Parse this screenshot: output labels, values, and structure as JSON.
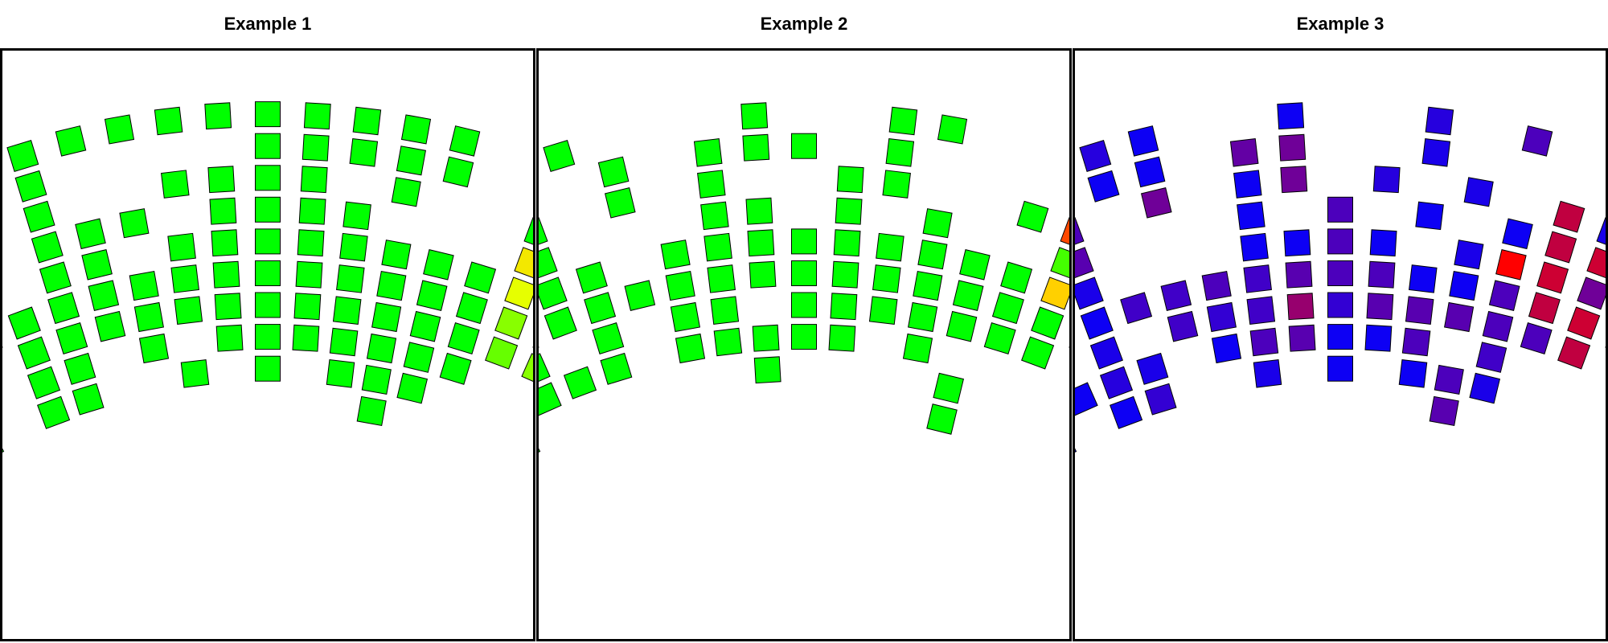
{
  "chart_data": [
    {
      "type": "heatmap",
      "title": "Example 1",
      "xlim": [
        -9.5,
        9.5
      ],
      "ylim": [
        -2.5,
        16
      ],
      "arc_radius": 30,
      "rows": [
        {
          "r": 0,
          "cols": [
            -7,
            -6,
            -5,
            -4,
            -3,
            -2,
            -1,
            0,
            1,
            2,
            3,
            4
          ],
          "vals": [
            0,
            0,
            0,
            0,
            0,
            0,
            0,
            0,
            0,
            0,
            0,
            0
          ]
        },
        {
          "r": 1,
          "cols": [
            -8,
            -5,
            0,
            1,
            2,
            3,
            4
          ],
          "vals": [
            0,
            0,
            0,
            0,
            0,
            0,
            0
          ]
        },
        {
          "r": 2,
          "cols": [
            -9,
            -8,
            -7,
            -5,
            -2,
            -1,
            0,
            1,
            3,
            6,
            7
          ],
          "vals": [
            0,
            0,
            0,
            0,
            0,
            0,
            0,
            0,
            0,
            0,
            0.45
          ]
        },
        {
          "r": 3,
          "cols": [
            -9,
            -5,
            -4,
            -3,
            -1,
            0,
            1,
            2,
            6,
            7,
            8
          ],
          "vals": [
            0,
            0,
            0,
            0,
            0,
            0,
            0,
            0,
            0.5,
            0.95,
            0.3
          ]
        },
        {
          "r": 4,
          "cols": [
            -8,
            -5,
            -4,
            -2,
            -1,
            0,
            1,
            2,
            3,
            4,
            5,
            6,
            7,
            8
          ],
          "vals": [
            0,
            0,
            0,
            0,
            0,
            0,
            0,
            0,
            0,
            0,
            0,
            0.4,
            0.75,
            0.35
          ]
        },
        {
          "r": 5,
          "cols": [
            -8,
            -7,
            -6,
            -5,
            -4,
            -3,
            -2,
            -1,
            0,
            1,
            2,
            3,
            4,
            5,
            6,
            7
          ],
          "vals": [
            0,
            0,
            0,
            0,
            0,
            0,
            0,
            0,
            0,
            0,
            0,
            0,
            0,
            0,
            0.2,
            0.15
          ]
        },
        {
          "r": 6,
          "cols": [
            -6,
            -5,
            -4,
            -3,
            -2,
            -1,
            0,
            1,
            2,
            3,
            4,
            5,
            6,
            7
          ],
          "vals": [
            0,
            0,
            0,
            0,
            0,
            0,
            0,
            0,
            0,
            0,
            0,
            0,
            0.15,
            0.2
          ]
        },
        {
          "r": 7,
          "cols": [
            -6,
            -5,
            -3,
            -1,
            0,
            1,
            2,
            3,
            4,
            5
          ],
          "vals": [
            0,
            0,
            0,
            0,
            0,
            0,
            0,
            0,
            0,
            0
          ]
        },
        {
          "r": 8,
          "cols": [
            -8,
            -6,
            -5,
            -2,
            0,
            2,
            3,
            4
          ],
          "vals": [
            0,
            0,
            0,
            0,
            0,
            0,
            0,
            0
          ]
        },
        {
          "r": 9,
          "cols": [
            3
          ],
          "vals": [
            0
          ]
        }
      ]
    },
    {
      "type": "heatmap",
      "title": "Example 2",
      "xlim": [
        -9.5,
        9.5
      ],
      "ylim": [
        -2.5,
        16
      ],
      "arc_radius": 30,
      "rows": [
        {
          "r": 0,
          "cols": [
            -9,
            -7,
            -6,
            -5,
            -1,
            2,
            3,
            7
          ],
          "vals": [
            0,
            0,
            0,
            0,
            0,
            0,
            0,
            0
          ]
        },
        {
          "r": 1,
          "cols": [
            -9,
            -8,
            -7,
            -4,
            -2,
            -1,
            0,
            2,
            6,
            7,
            8,
            9
          ],
          "vals": [
            0,
            0,
            0,
            0,
            0,
            0,
            0,
            0,
            0.35,
            0.3,
            0.45,
            0.2
          ]
        },
        {
          "r": 2,
          "cols": [
            -9,
            -8,
            -6,
            -4,
            -2,
            1,
            2,
            5,
            6,
            7,
            8
          ],
          "vals": [
            0,
            0,
            0,
            0,
            0,
            0,
            0,
            0,
            0.9,
            0.7,
            0.95
          ]
        },
        {
          "r": 3,
          "cols": [
            -9,
            -7,
            -6,
            -2,
            -1,
            1,
            3,
            6,
            7,
            8
          ],
          "vals": [
            0,
            0,
            0,
            0,
            0,
            0,
            0,
            0.1,
            0.85,
            0.25
          ]
        },
        {
          "r": 4,
          "cols": [
            -9,
            -7,
            -6,
            -5,
            -3,
            -2,
            -1,
            0,
            1,
            2,
            3,
            4,
            5,
            6,
            7,
            8,
            9
          ],
          "vals": [
            0,
            0,
            0,
            0,
            0,
            0,
            0,
            0,
            0,
            0,
            0,
            0,
            0,
            0.6,
            0.35,
            0.15,
            0.6
          ]
        },
        {
          "r": 5,
          "cols": [
            -7,
            -6,
            -5,
            -4,
            -3,
            -2,
            -1,
            0,
            1,
            2,
            3,
            4,
            5,
            6,
            7,
            8
          ],
          "vals": [
            0,
            0,
            0,
            0,
            0,
            0,
            0,
            0,
            0,
            0,
            0,
            0,
            0,
            0,
            0.5,
            0.3
          ]
        },
        {
          "r": 6,
          "cols": [
            -7,
            -5,
            -3,
            -2,
            0,
            1,
            2,
            3,
            4,
            5,
            6
          ],
          "vals": [
            0,
            0,
            0,
            0,
            0,
            0,
            0,
            0,
            0,
            0,
            0
          ]
        },
        {
          "r": 7,
          "cols": [
            -7,
            -6,
            -5,
            -3,
            -2,
            -1,
            0,
            1,
            3
          ],
          "vals": [
            0,
            0,
            0,
            0,
            0,
            0,
            0,
            0,
            0
          ]
        },
        {
          "r": 8,
          "cols": [
            -8,
            -1,
            4
          ],
          "vals": [
            0,
            0,
            0
          ]
        },
        {
          "r": 9,
          "cols": [
            4
          ],
          "vals": [
            0
          ]
        }
      ]
    },
    {
      "type": "heatmap",
      "title": "Example 3",
      "xlim": [
        -9.5,
        9.5
      ],
      "ylim": [
        -2.5,
        16
      ],
      "arc_radius": 30,
      "rows": [
        {
          "r": 0,
          "cols": [
            -9,
            -8,
            -6,
            -5,
            -4,
            -1,
            2,
            4
          ],
          "vals": [
            0.5,
            0.5,
            0.5,
            0.15,
            0.05,
            0.05,
            0.15,
            0.3
          ]
        },
        {
          "r": 1,
          "cols": [
            -9,
            -8,
            -7,
            -5,
            -4,
            -2,
            -1,
            2
          ],
          "vals": [
            0.3,
            0.35,
            0.1,
            0.05,
            0.05,
            0.4,
            0.45,
            0.1
          ]
        },
        {
          "r": 2,
          "cols": [
            -8,
            -6,
            -4,
            -2,
            -1,
            1,
            3,
            5,
            6
          ],
          "vals": [
            0.05,
            0.3,
            0.45,
            0.05,
            0.45,
            0.15,
            0.1,
            0.75,
            0.1
          ]
        },
        {
          "r": 3,
          "cols": [
            -9,
            -6,
            -2,
            0,
            2,
            4,
            5,
            6,
            8
          ],
          "vals": [
            0.1,
            0.35,
            0.05,
            0.3,
            0.05,
            0.05,
            0.75,
            0.8,
            0.05
          ]
        },
        {
          "r": 4,
          "cols": [
            -9,
            -8,
            -6,
            -2,
            -1,
            0,
            1,
            3,
            4,
            5,
            6,
            7
          ],
          "vals": [
            0.1,
            0.3,
            0.1,
            0.05,
            0.05,
            0.3,
            0.05,
            0.1,
            1,
            0.8,
            0.45,
            0.8
          ]
        },
        {
          "r": 5,
          "cols": [
            -9,
            -6,
            -5,
            -4,
            -3,
            -2,
            -1,
            0,
            1,
            2,
            3,
            4,
            5,
            6,
            7,
            8
          ],
          "vals": [
            0.15,
            0.05,
            0.25,
            0.25,
            0.3,
            0.25,
            0.35,
            0.3,
            0.3,
            0.05,
            0.05,
            0.3,
            0.75,
            0.8,
            0.8,
            0.75
          ]
        },
        {
          "r": 6,
          "cols": [
            -6,
            -4,
            -3,
            -2,
            -1,
            0,
            1,
            2,
            3,
            4,
            5,
            6
          ],
          "vals": [
            0.1,
            0.25,
            0.2,
            0.25,
            0.6,
            0.2,
            0.35,
            0.35,
            0.35,
            0.3,
            0.3,
            0.75
          ]
        },
        {
          "r": 7,
          "cols": [
            -7,
            -6,
            -5,
            -3,
            -2,
            -1,
            0,
            1,
            2,
            4
          ],
          "vals": [
            0.05,
            0.15,
            0.1,
            0.05,
            0.3,
            0.35,
            0.05,
            0.05,
            0.3,
            0.25
          ]
        },
        {
          "r": 8,
          "cols": [
            -8,
            -6,
            -5,
            -2,
            0,
            2,
            3,
            4
          ],
          "vals": [
            0.05,
            0.05,
            0.2,
            0.1,
            0.05,
            0.05,
            0.3,
            0.1
          ]
        },
        {
          "r": 9,
          "cols": [
            3
          ],
          "vals": [
            0.35
          ]
        }
      ]
    }
  ],
  "palettes": {
    "example_1": [
      "#00ff00",
      "#88ff00",
      "#e6ff00",
      "#ffd000",
      "#ff9000",
      "#ff0000"
    ],
    "example_2": [
      "#00ff00",
      "#88ff00",
      "#e6ff00",
      "#ffd000",
      "#ff9000",
      "#ff0000"
    ],
    "example_3": [
      "#0000ff",
      "#4000c8",
      "#7b008c",
      "#c00040",
      "#ff0000"
    ]
  }
}
